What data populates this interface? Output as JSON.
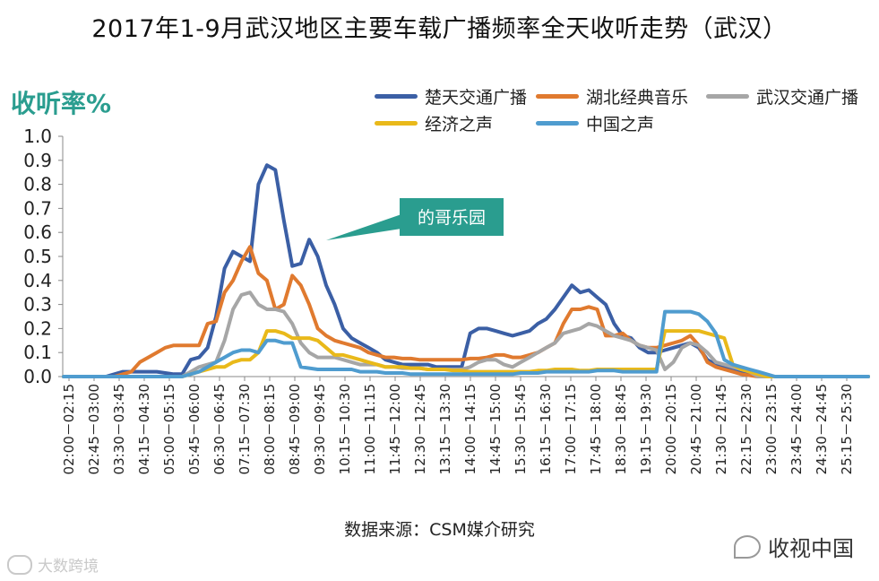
{
  "title": "2017年1-9月武汉地区主要车载广播频率全天收听走势（武汉）",
  "source": "数据来源：CSM媒介研究",
  "watermark_left": "大数跨境",
  "watermark_right": "收视中国",
  "chart_data": {
    "type": "line",
    "title": "2017年1-9月武汉地区主要车载广播频率全天收听走势（武汉）",
    "ylabel": "收听率%",
    "xlabel": "",
    "ylim": [
      0,
      1.0
    ],
    "yticks": [
      "0.0",
      "0.1",
      "0.2",
      "0.3",
      "0.4",
      "0.5",
      "0.6",
      "0.7",
      "0.8",
      "0.9",
      "1.0"
    ],
    "grid": false,
    "legend_position": "top-right",
    "x_tick_labels": [
      "02:00－02:15",
      "02:45－03:00",
      "03:30－03:45",
      "04:15－04:30",
      "05:00－05:15",
      "05:45－06:00",
      "06:30－06:45",
      "07:15－07:30",
      "08:00－08:15",
      "08:45－09:00",
      "09:30－09:45",
      "10:15－10:30",
      "11:00－11:15",
      "11:45－12:00",
      "12:30－12:45",
      "13:15－13:30",
      "14:00－14:15",
      "14:45－15:00",
      "15:30－15:45",
      "16:15－16:30",
      "17:00－17:15",
      "17:45－18:00",
      "18:30－18:45",
      "19:15－19:30",
      "20:00－20:15",
      "20:45－21:00",
      "21:30－21:45",
      "22:15－22:30",
      "23:00－23:15",
      "23:45－24:00",
      "24:30－24:45",
      "25:15－25:30"
    ],
    "annotation": "的哥乐园",
    "series": [
      {
        "name": "楚天交通广播",
        "color": "#3b5fa5",
        "values": [
          0,
          0,
          0,
          0,
          0,
          0,
          0.01,
          0.02,
          0.02,
          0.02,
          0.02,
          0.02,
          0.015,
          0.01,
          0.01,
          0.07,
          0.08,
          0.12,
          0.25,
          0.45,
          0.52,
          0.5,
          0.48,
          0.8,
          0.88,
          0.86,
          0.65,
          0.46,
          0.47,
          0.57,
          0.5,
          0.38,
          0.3,
          0.2,
          0.16,
          0.14,
          0.12,
          0.1,
          0.07,
          0.06,
          0.05,
          0.05,
          0.05,
          0.05,
          0.04,
          0.04,
          0.04,
          0.04,
          0.18,
          0.2,
          0.2,
          0.19,
          0.18,
          0.17,
          0.18,
          0.19,
          0.22,
          0.24,
          0.28,
          0.33,
          0.38,
          0.35,
          0.36,
          0.33,
          0.3,
          0.22,
          0.17,
          0.16,
          0.12,
          0.1,
          0.1,
          0.11,
          0.12,
          0.13,
          0.14,
          0.12,
          0.07,
          0.05,
          0.04,
          0.03,
          0.02,
          0.01,
          0.005,
          0,
          0,
          0,
          0,
          0,
          0,
          0,
          0,
          0,
          0,
          0,
          0,
          0
        ]
      },
      {
        "name": "湖北经典音乐",
        "color": "#e07a2f",
        "values": [
          0,
          0,
          0,
          0,
          0,
          0,
          0,
          0.01,
          0.02,
          0.06,
          0.08,
          0.1,
          0.12,
          0.13,
          0.13,
          0.13,
          0.13,
          0.22,
          0.23,
          0.35,
          0.4,
          0.48,
          0.54,
          0.43,
          0.4,
          0.28,
          0.3,
          0.42,
          0.38,
          0.3,
          0.2,
          0.17,
          0.15,
          0.14,
          0.13,
          0.12,
          0.1,
          0.09,
          0.08,
          0.08,
          0.075,
          0.075,
          0.07,
          0.07,
          0.07,
          0.07,
          0.07,
          0.07,
          0.075,
          0.075,
          0.08,
          0.09,
          0.09,
          0.08,
          0.08,
          0.09,
          0.1,
          0.12,
          0.14,
          0.22,
          0.28,
          0.28,
          0.29,
          0.28,
          0.17,
          0.17,
          0.18,
          0.15,
          0.13,
          0.12,
          0.12,
          0.13,
          0.14,
          0.15,
          0.17,
          0.13,
          0.06,
          0.04,
          0.03,
          0.02,
          0.01,
          0.005,
          0,
          0,
          0,
          0,
          0,
          0,
          0,
          0,
          0,
          0,
          0,
          0,
          0,
          0
        ]
      },
      {
        "name": "武汉交通广播",
        "color": "#a6a6a6",
        "values": [
          0,
          0,
          0,
          0,
          0,
          0,
          0,
          0,
          0,
          0,
          0,
          0,
          0,
          0,
          0,
          0.02,
          0.04,
          0.05,
          0.06,
          0.15,
          0.28,
          0.34,
          0.35,
          0.3,
          0.28,
          0.28,
          0.27,
          0.22,
          0.14,
          0.1,
          0.08,
          0.08,
          0.08,
          0.07,
          0.06,
          0.05,
          0.05,
          0.05,
          0.04,
          0.04,
          0.035,
          0.035,
          0.035,
          0.03,
          0.03,
          0.03,
          0.03,
          0.03,
          0.04,
          0.06,
          0.07,
          0.07,
          0.05,
          0.04,
          0.06,
          0.08,
          0.1,
          0.12,
          0.14,
          0.18,
          0.19,
          0.2,
          0.22,
          0.21,
          0.19,
          0.17,
          0.16,
          0.15,
          0.13,
          0.12,
          0.11,
          0.03,
          0.06,
          0.12,
          0.14,
          0.13,
          0.1,
          0.06,
          0.05,
          0.04,
          0.03,
          0.02,
          0,
          0,
          0,
          0,
          0,
          0,
          0,
          0,
          0,
          0,
          0,
          0,
          0,
          0
        ]
      },
      {
        "name": "经济之声",
        "color": "#e9b91a",
        "values": [
          0,
          0,
          0,
          0,
          0,
          0,
          0,
          0,
          0,
          0,
          0,
          0,
          0,
          0,
          0,
          0.01,
          0.02,
          0.03,
          0.04,
          0.04,
          0.06,
          0.07,
          0.07,
          0.1,
          0.19,
          0.19,
          0.18,
          0.16,
          0.16,
          0.16,
          0.15,
          0.12,
          0.09,
          0.09,
          0.08,
          0.07,
          0.06,
          0.05,
          0.04,
          0.04,
          0.04,
          0.035,
          0.035,
          0.03,
          0.03,
          0.03,
          0.025,
          0.025,
          0.02,
          0.02,
          0.02,
          0.02,
          0.02,
          0.02,
          0.02,
          0.02,
          0.025,
          0.025,
          0.03,
          0.03,
          0.03,
          0.025,
          0.025,
          0.03,
          0.03,
          0.03,
          0.03,
          0.03,
          0.03,
          0.03,
          0.03,
          0.19,
          0.19,
          0.19,
          0.19,
          0.19,
          0.18,
          0.17,
          0.16,
          0.05,
          0.03,
          0.02,
          0.01,
          0,
          0,
          0,
          0,
          0,
          0,
          0,
          0,
          0,
          0,
          0,
          0,
          0
        ]
      },
      {
        "name": "中国之声",
        "color": "#4f9ccf",
        "values": [
          0,
          0,
          0,
          0,
          0,
          0,
          0,
          0,
          0,
          0,
          0,
          0,
          0,
          0,
          0,
          0.01,
          0.02,
          0.04,
          0.06,
          0.08,
          0.1,
          0.11,
          0.11,
          0.1,
          0.15,
          0.15,
          0.14,
          0.14,
          0.04,
          0.035,
          0.03,
          0.03,
          0.03,
          0.03,
          0.03,
          0.02,
          0.02,
          0.02,
          0.015,
          0.015,
          0.015,
          0.01,
          0.01,
          0.01,
          0.01,
          0.01,
          0.01,
          0.01,
          0.01,
          0.01,
          0.01,
          0.01,
          0.01,
          0.01,
          0.015,
          0.015,
          0.015,
          0.02,
          0.02,
          0.02,
          0.02,
          0.02,
          0.02,
          0.025,
          0.025,
          0.025,
          0.02,
          0.02,
          0.02,
          0.02,
          0.02,
          0.27,
          0.27,
          0.27,
          0.27,
          0.26,
          0.23,
          0.18,
          0.07,
          0.05,
          0.04,
          0.03,
          0.02,
          0.01,
          0,
          0,
          0,
          0,
          0,
          0,
          0,
          0,
          0,
          0,
          0,
          0
        ]
      }
    ]
  }
}
